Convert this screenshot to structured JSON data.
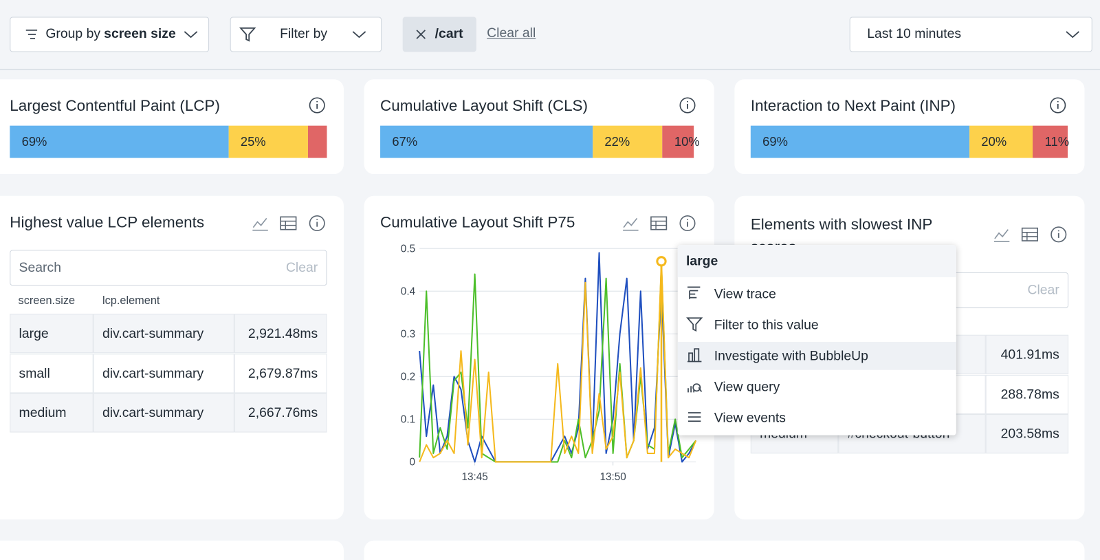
{
  "toolbar": {
    "group_by_label": "Group by",
    "group_by_value": "screen size",
    "filter_label": "Filter by",
    "active_filter": "/cart",
    "clear_all": "Clear all",
    "time_range": "Last 10 minutes"
  },
  "score_cards": [
    {
      "title": "Largest Contentful Paint (LCP)",
      "values": [
        69,
        25,
        6
      ],
      "value_labels": [
        "69%",
        "25%",
        null
      ],
      "colors": [
        "#62b3ef",
        "#fdd14b",
        "#e06666"
      ]
    },
    {
      "title": "Cumulative Layout Shift (CLS)",
      "values": [
        67,
        22,
        10
      ],
      "value_labels": [
        "67%",
        "22%",
        "10%"
      ],
      "colors": [
        "#62b3ef",
        "#fdd14b",
        "#e06666"
      ]
    },
    {
      "title": "Interaction to Next Paint (INP)",
      "values": [
        69,
        20,
        11
      ],
      "value_labels": [
        "69%",
        "20%",
        "11%"
      ],
      "colors": [
        "#62b3ef",
        "#fdd14b",
        "#e06666"
      ]
    }
  ],
  "lcp_elements": {
    "title": "Highest value LCP elements",
    "search_placeholder": "Search",
    "clear": "Clear",
    "columns": [
      "screen.size",
      "lcp.element"
    ],
    "rows": [
      [
        "large",
        "div.cart-summary",
        "2,921.48ms"
      ],
      [
        "small",
        "div.cart-summary",
        "2,679.87ms"
      ],
      [
        "medium",
        "div.cart-summary",
        "2,667.76ms"
      ]
    ]
  },
  "chart_data": {
    "type": "line",
    "title": "Cumulative Layout Shift P75",
    "categories": [
      null,
      null,
      null,
      null,
      null,
      null,
      null,
      null,
      "13:45",
      null,
      null,
      null,
      null,
      null,
      null,
      null,
      null,
      null,
      null,
      null,
      null,
      null,
      null,
      null,
      null,
      null,
      null,
      null,
      "13:50",
      null,
      null,
      null,
      null,
      null,
      null,
      null,
      null,
      null,
      null,
      null,
      null
    ],
    "ylim": [
      0,
      0.5
    ],
    "yticks": [
      0,
      0.1,
      0.2,
      0.3,
      0.4,
      0.5
    ],
    "grid": true,
    "series": [
      {
        "color": "#1f4fbf",
        "values": [
          0.26,
          0.06,
          0.18,
          0.02,
          0.06,
          0.2,
          0.17,
          0.05,
          0,
          0.06,
          0.03,
          0,
          0,
          0,
          0,
          0,
          0,
          0,
          0,
          0,
          0.03,
          0.06,
          0.02,
          0.08,
          0.43,
          0.03,
          0.49,
          0.02,
          0.1,
          0.3,
          0.43,
          0.05,
          0.4,
          0.03,
          0.08,
          0.41,
          0.01,
          0.09,
          0,
          0.02,
          0.05
        ]
      },
      {
        "color": "#4cbf2a",
        "values": [
          0.01,
          0.4,
          0.02,
          0.08,
          0.03,
          0.19,
          0.21,
          0.08,
          0.44,
          0.02,
          0.01,
          0,
          0,
          0,
          0,
          0,
          0,
          0,
          0,
          0,
          0,
          0.05,
          0.01,
          0.1,
          0.01,
          0.05,
          0.12,
          0.43,
          0.02,
          0.23,
          0.01,
          0.05,
          0.2,
          0.04,
          0.03,
          0.46,
          0.02,
          0.1,
          0.01,
          0.03,
          0.05
        ]
      },
      {
        "color": "#f5b91d",
        "values": [
          0,
          0.04,
          0.01,
          0.02,
          0.05,
          0.02,
          0.26,
          0.04,
          0.24,
          0.01,
          0.21,
          0,
          0,
          0,
          0,
          0,
          0,
          0,
          0,
          0,
          0.23,
          0.02,
          0.06,
          0.02,
          0.42,
          0.02,
          0.16,
          0.03,
          0.06,
          0.21,
          0.01,
          0.05,
          0.22,
          0.02,
          0.02,
          0.47,
          0.01,
          0.03,
          0.02,
          0.01,
          0.05
        ]
      }
    ],
    "highlighted_point": {
      "series": 2,
      "index": 35
    }
  },
  "inp_elements": {
    "title": "Elements with slowest INP scores",
    "clear": "Clear",
    "rows": [
      [
        null,
        null,
        "401.91ms"
      ],
      [
        null,
        null,
        "288.78ms"
      ],
      [
        "medium",
        "#checkout-button",
        "203.58ms"
      ]
    ]
  },
  "tooltip": {
    "title": "large",
    "items": [
      "View trace",
      "Filter to this value",
      "Investigate with BubbleUp",
      "View query",
      "View events"
    ],
    "highlighted": 2
  }
}
